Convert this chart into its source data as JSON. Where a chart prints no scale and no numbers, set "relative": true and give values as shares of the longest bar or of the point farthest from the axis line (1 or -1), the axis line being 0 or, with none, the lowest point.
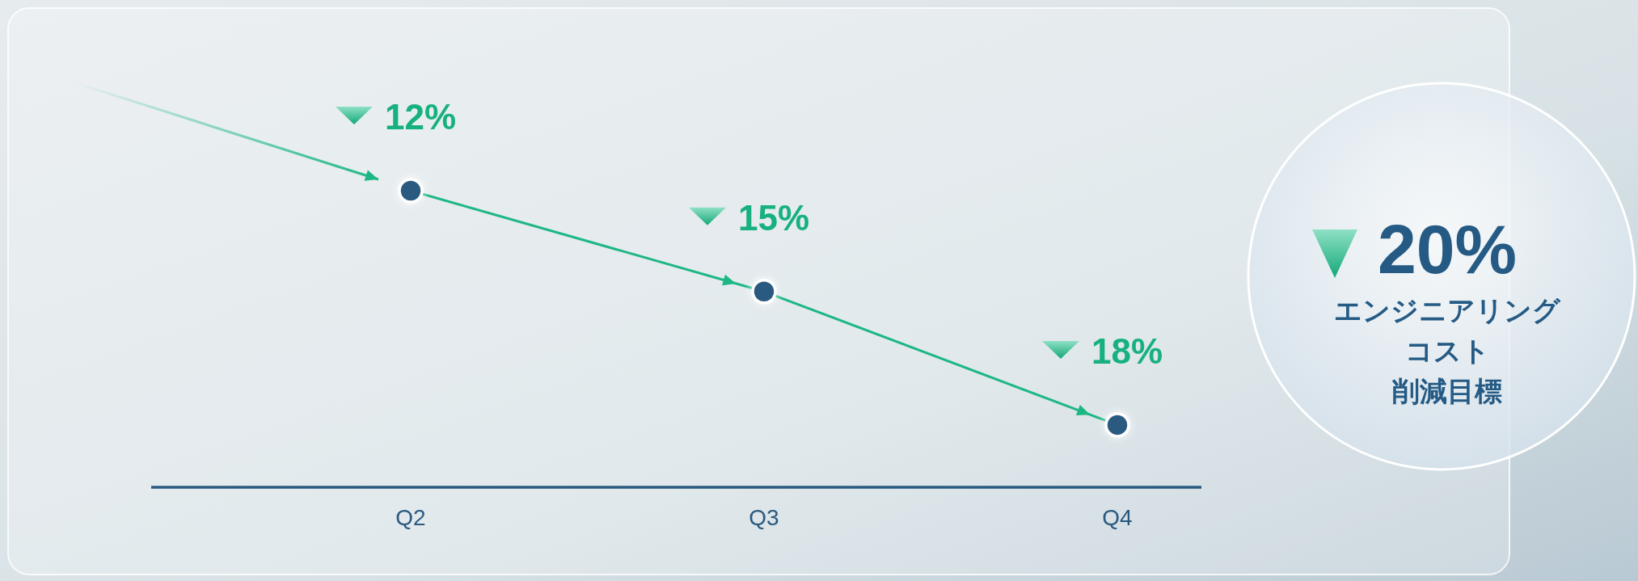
{
  "chart_data": {
    "type": "line",
    "categories": [
      "Q2",
      "Q3",
      "Q4"
    ],
    "relative": true,
    "series": [
      {
        "color": "#1db784",
        "values": [
          1,
          0.66,
          0.21
        ]
      }
    ],
    "value_labels": [
      "12%",
      "15%",
      "18%"
    ],
    "marker": "circle",
    "annotations": [
      "20%",
      "エンジニアリング",
      "コスト",
      "削減目標"
    ]
  }
}
